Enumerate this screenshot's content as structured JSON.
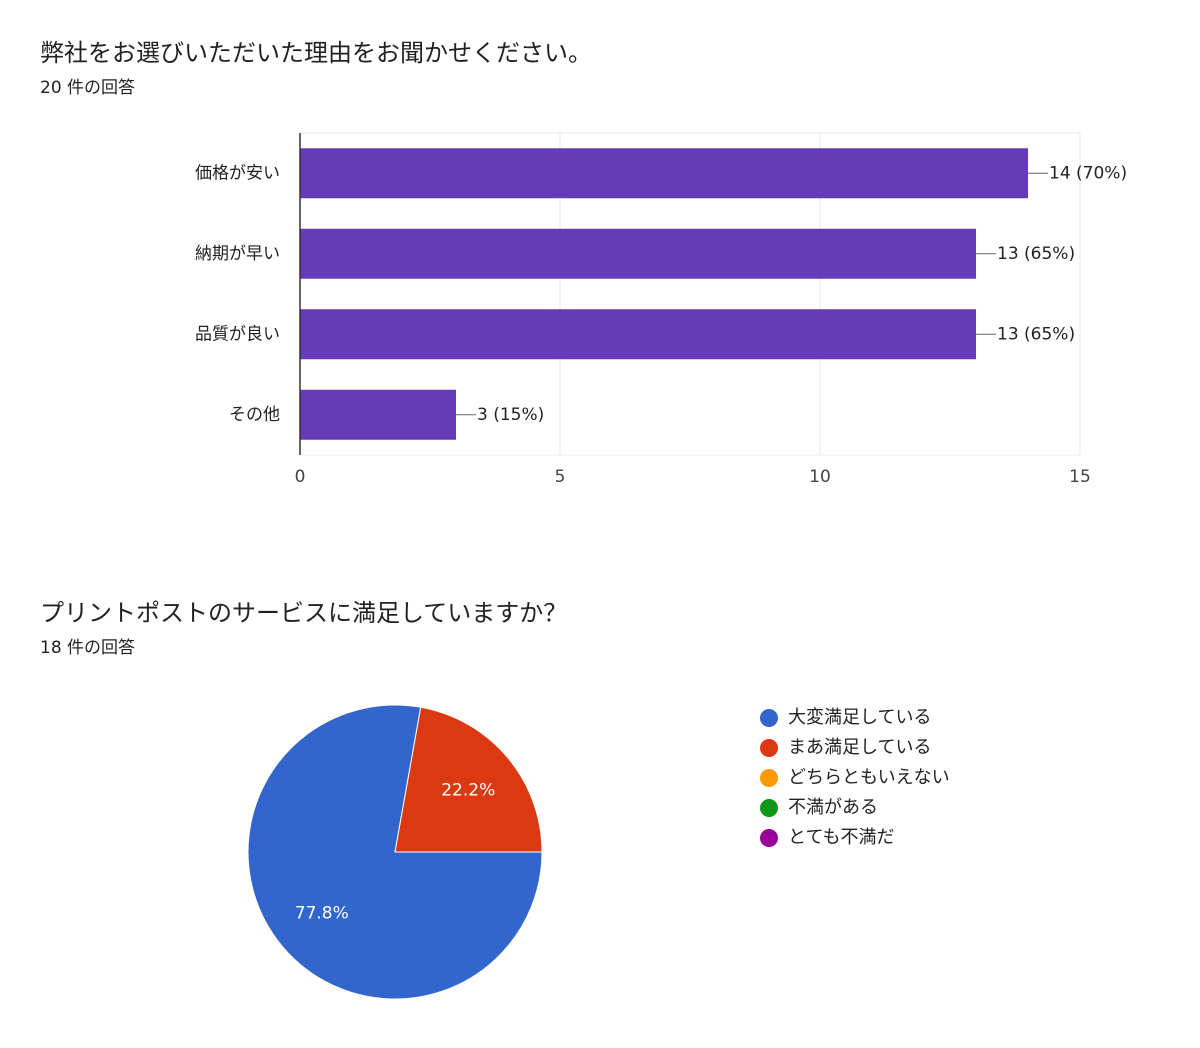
{
  "chart_data": [
    {
      "type": "bar",
      "orientation": "horizontal",
      "title": "弊社をお選びいただいた理由をお聞かせください。",
      "subtitle": "20 件の回答",
      "categories": [
        "価格が安い",
        "納期が早い",
        "品質が良い",
        "その他"
      ],
      "values": [
        14,
        13,
        13,
        3
      ],
      "value_labels": [
        "14 (70%)",
        "13 (65%)",
        "13 (65%)",
        "3 (15%)"
      ],
      "color": "#673ab7",
      "xlim": [
        0,
        15
      ],
      "xticks": [
        0,
        5,
        10,
        15
      ],
      "grid": true
    },
    {
      "type": "pie",
      "title": "プリントポストのサービスに満足していますか？",
      "subtitle": "18 件の回答",
      "categories": [
        "大変満足している",
        "まあ満足している",
        "どちらともいえない",
        "不満がある",
        "とても不満だ"
      ],
      "values": [
        77.8,
        22.2,
        0,
        0,
        0
      ],
      "value_labels": [
        "77.8%",
        "22.2%",
        null,
        null,
        null
      ],
      "colors": [
        "#3366cc",
        "#dc3912",
        "#ff9900",
        "#109618",
        "#990099"
      ],
      "legend": "right"
    }
  ]
}
